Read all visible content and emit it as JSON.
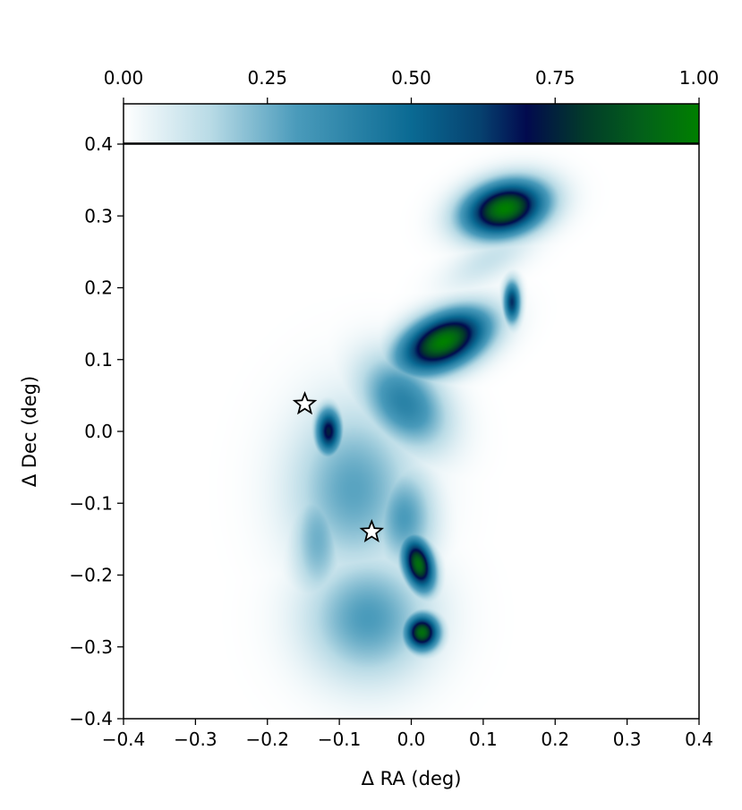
{
  "chart_data": {
    "type": "heatmap",
    "title": "",
    "xlabel": "Δ RA (deg)",
    "ylabel": "Δ Dec (deg)",
    "xlim": [
      -0.4,
      0.4
    ],
    "ylim": [
      -0.4,
      0.4
    ],
    "x_ticks": [
      -0.4,
      -0.3,
      -0.2,
      -0.1,
      0.0,
      0.1,
      0.2,
      0.3,
      0.4
    ],
    "y_ticks": [
      -0.4,
      -0.3,
      -0.2,
      -0.1,
      0.0,
      0.1,
      0.2,
      0.3,
      0.4
    ],
    "x_tick_labels": [
      "−0.4",
      "−0.3",
      "−0.2",
      "−0.1",
      "0.0",
      "0.1",
      "0.2",
      "0.3",
      "0.4"
    ],
    "y_tick_labels": [
      "−0.4",
      "−0.3",
      "−0.2",
      "−0.1",
      "0.0",
      "0.1",
      "0.2",
      "0.3",
      "0.4"
    ],
    "grid": false,
    "colorbar": {
      "location": "top",
      "range": [
        0.0,
        1.0
      ],
      "ticks": [
        0.0,
        0.25,
        0.5,
        0.75,
        1.0
      ],
      "tick_labels": [
        "0.00",
        "0.25",
        "0.50",
        "0.75",
        "1.00"
      ],
      "colormap_stops": [
        {
          "value": 0.0,
          "color": "#ffffff"
        },
        {
          "value": 0.15,
          "color": "#b9dbe6"
        },
        {
          "value": 0.3,
          "color": "#4a9bbb"
        },
        {
          "value": 0.5,
          "color": "#0a6a93"
        },
        {
          "value": 0.62,
          "color": "#06416f"
        },
        {
          "value": 0.7,
          "color": "#020a4e"
        },
        {
          "value": 0.8,
          "color": "#023a2a"
        },
        {
          "value": 0.9,
          "color": "#03601a"
        },
        {
          "value": 1.0,
          "color": "#008000"
        }
      ]
    },
    "markers": [
      {
        "type": "star",
        "x": -0.148,
        "y": 0.038,
        "color": "#ffffff"
      },
      {
        "type": "star",
        "x": -0.055,
        "y": -0.14,
        "color": "#ffffff"
      }
    ],
    "intensity_components": [
      {
        "x": 0.13,
        "y": 0.31,
        "sx": 0.04,
        "sy": 0.025,
        "rot": 15,
        "peak": 1.0
      },
      {
        "x": 0.045,
        "y": 0.125,
        "sx": 0.045,
        "sy": 0.025,
        "rot": 25,
        "peak": 1.0
      },
      {
        "x": 0.14,
        "y": 0.18,
        "sx": 0.008,
        "sy": 0.02,
        "rot": 0,
        "peak": 0.65
      },
      {
        "x": -0.115,
        "y": 0.0,
        "sx": 0.012,
        "sy": 0.022,
        "rot": 0,
        "peak": 0.75
      },
      {
        "x": 0.01,
        "y": -0.185,
        "sx": 0.014,
        "sy": 0.026,
        "rot": 15,
        "peak": 0.95
      },
      {
        "x": 0.015,
        "y": -0.28,
        "sx": 0.016,
        "sy": 0.017,
        "rot": 0,
        "peak": 0.95
      },
      {
        "x": -0.01,
        "y": 0.04,
        "sx": 0.035,
        "sy": 0.05,
        "rot": 40,
        "peak": 0.4
      },
      {
        "x": -0.08,
        "y": -0.08,
        "sx": 0.06,
        "sy": 0.08,
        "rot": 0,
        "peak": 0.28
      },
      {
        "x": -0.06,
        "y": -0.26,
        "sx": 0.06,
        "sy": 0.06,
        "rot": 0,
        "peak": 0.3
      },
      {
        "x": 0.11,
        "y": 0.24,
        "sx": 0.05,
        "sy": 0.02,
        "rot": 30,
        "peak": 0.12
      },
      {
        "x": -0.01,
        "y": -0.12,
        "sx": 0.03,
        "sy": 0.05,
        "rot": 0,
        "peak": 0.3
      },
      {
        "x": -0.13,
        "y": -0.15,
        "sx": 0.025,
        "sy": 0.06,
        "rot": 0,
        "peak": 0.25
      }
    ]
  }
}
